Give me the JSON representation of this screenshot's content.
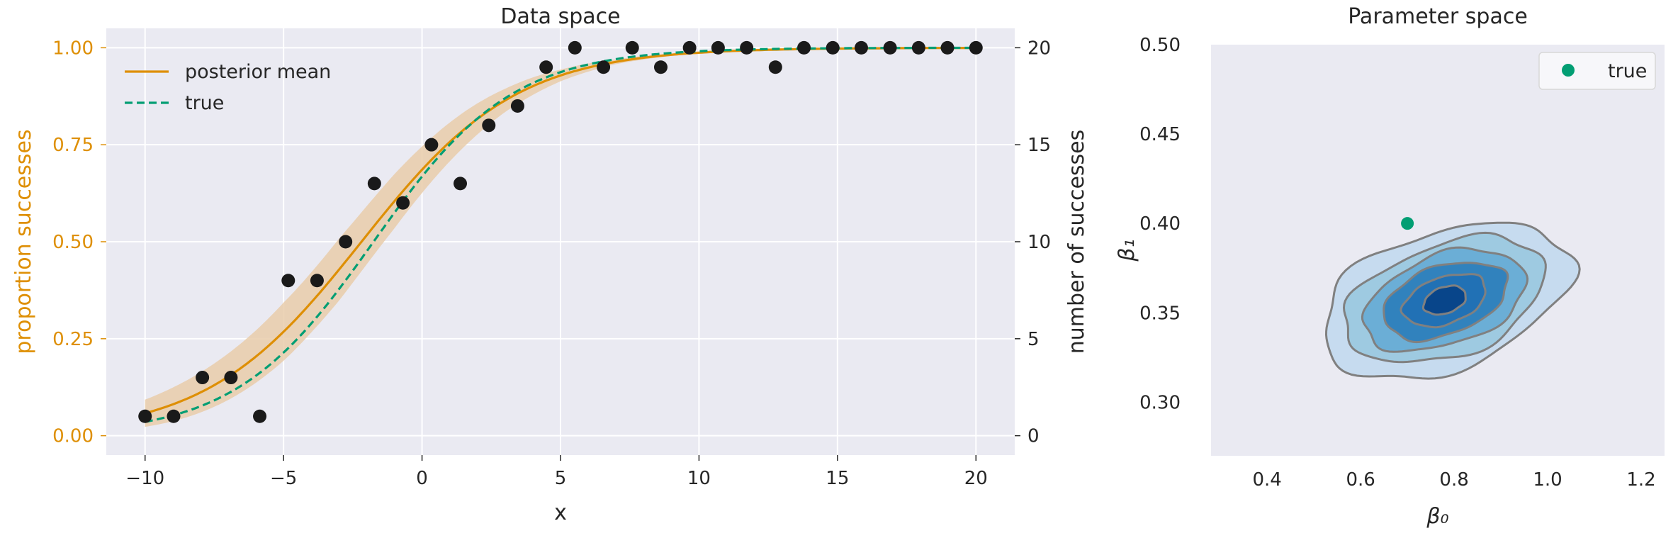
{
  "chart_data": [
    {
      "type": "line",
      "title": "Data space",
      "xlabel": "x",
      "ylabel": "proportion successes",
      "ylabel_right": "number of successes",
      "xlim": [
        -11.4,
        21.4
      ],
      "ylim": [
        -0.05,
        1.05
      ],
      "ylim_right": [
        -1,
        21
      ],
      "xticks": [
        -10,
        -5,
        0,
        5,
        10,
        15,
        20
      ],
      "xtick_labels": [
        "−10",
        "−5",
        "0",
        "5",
        "10",
        "15",
        "20"
      ],
      "yticks": [
        0.0,
        0.25,
        0.5,
        0.75,
        1.0
      ],
      "ytick_labels": [
        "0.00",
        "0.25",
        "0.50",
        "0.75",
        "1.00"
      ],
      "yticks_right": [
        0,
        5,
        10,
        15,
        20
      ],
      "ytick_labels_right": [
        "0",
        "5",
        "10",
        "15",
        "20"
      ],
      "grid": true,
      "legend_position": "upper-left",
      "colors": {
        "posterior": "#de8f05",
        "band": "#e9ccaa",
        "true": "#029e73",
        "points": "#1a1a1a",
        "background": "#eaeaf2",
        "grid": "#ffffff"
      },
      "series": [
        {
          "name": "posterior mean",
          "style": "solid",
          "beta0": 0.78,
          "beta1": 0.357
        },
        {
          "name": "true",
          "style": "dashed",
          "beta0": 0.7,
          "beta1": 0.4
        }
      ],
      "band_halfwidth": [
        0.035,
        0.06,
        0.075,
        0.08,
        0.07,
        0.05,
        0.03,
        0.015,
        0.006,
        0.003
      ],
      "band_x": [
        -10,
        -7,
        -5,
        -3,
        -1,
        1,
        3,
        5,
        7,
        9
      ],
      "scatter": {
        "x": [
          -10,
          -8.97,
          -7.93,
          -6.9,
          -5.86,
          -4.83,
          -3.79,
          -2.76,
          -1.72,
          -0.69,
          0.34,
          1.38,
          2.41,
          3.45,
          4.48,
          5.52,
          6.55,
          7.59,
          8.62,
          9.66,
          10.69,
          11.72,
          12.76,
          13.79,
          14.83,
          15.86,
          16.9,
          17.93,
          18.97,
          20
        ],
        "successes": [
          1,
          1,
          3,
          3,
          1,
          8,
          8,
          10,
          13,
          12,
          15,
          13,
          16,
          17,
          19,
          20,
          19,
          20,
          19,
          20,
          20,
          20,
          19,
          20,
          20,
          20,
          20,
          20,
          20,
          20
        ],
        "trials": 20
      }
    },
    {
      "type": "contour",
      "title": "Parameter space",
      "xlabel": "β₀",
      "ylabel": "β₁",
      "xlim": [
        0.28,
        1.25
      ],
      "ylim": [
        0.27,
        0.5
      ],
      "xticks": [
        0.4,
        0.6,
        0.8,
        1.0,
        1.2
      ],
      "xtick_labels": [
        "0.4",
        "0.6",
        "0.8",
        "1.0",
        "1.2"
      ],
      "yticks": [
        0.3,
        0.35,
        0.4,
        0.45,
        0.5
      ],
      "ytick_labels": [
        "0.30",
        "0.35",
        "0.40",
        "0.45",
        "0.50"
      ],
      "grid": false,
      "legend_position": "upper-right",
      "density_center": [
        0.78,
        0.357
      ],
      "level_fills": [
        "#c6dbef",
        "#9ecae1",
        "#6baed6",
        "#3182bd",
        "#2171b5",
        "#08458a"
      ],
      "contour_line_color": "#808080",
      "true_point": {
        "name": "true",
        "x": 0.7,
        "y": 0.4,
        "color": "#029e73"
      }
    }
  ]
}
